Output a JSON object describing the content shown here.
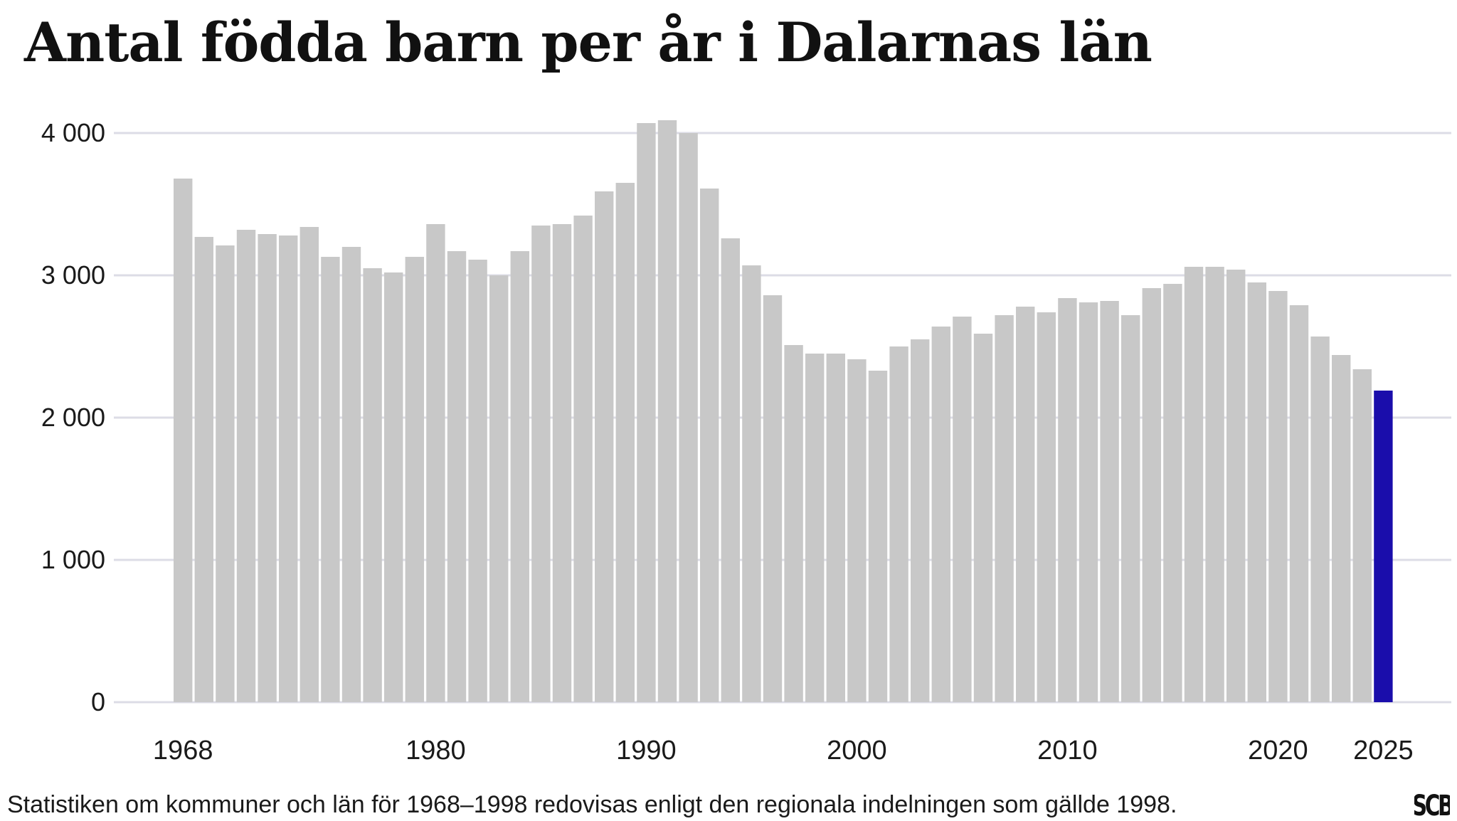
{
  "title": "Antal födda barn per år i Dalarnas län",
  "footnote": "Statistiken om kommuner och län för 1968–1998 redovisas enligt den regionala indelningen som gällde 1998.",
  "logo_text": "SCB",
  "colors": {
    "bar": "#c8c8c8",
    "highlight": "#1a0dab",
    "grid": "#dcdce6",
    "text": "#1a1a1a"
  },
  "chart_data": {
    "type": "bar",
    "title": "Antal födda barn per år i Dalarnas län",
    "xlabel": "",
    "ylabel": "",
    "ylim": [
      0,
      4000
    ],
    "y_ticks": [
      {
        "value": 0,
        "label": "0"
      },
      {
        "value": 1000,
        "label": "1 000"
      },
      {
        "value": 2000,
        "label": "2 000"
      },
      {
        "value": 3000,
        "label": "3 000"
      },
      {
        "value": 4000,
        "label": "4 000"
      }
    ],
    "x_ticks": [
      {
        "value": 1968,
        "label": "1968"
      },
      {
        "value": 1980,
        "label": "1980"
      },
      {
        "value": 1990,
        "label": "1990"
      },
      {
        "value": 2000,
        "label": "2000"
      },
      {
        "value": 2010,
        "label": "2010"
      },
      {
        "value": 2020,
        "label": "2020"
      },
      {
        "value": 2025,
        "label": "2025"
      }
    ],
    "grid": true,
    "highlight_year": 2025,
    "x": [
      1968,
      1969,
      1970,
      1971,
      1972,
      1973,
      1974,
      1975,
      1976,
      1977,
      1978,
      1979,
      1980,
      1981,
      1982,
      1983,
      1984,
      1985,
      1986,
      1987,
      1988,
      1989,
      1990,
      1991,
      1992,
      1993,
      1994,
      1995,
      1996,
      1997,
      1998,
      1999,
      2000,
      2001,
      2002,
      2003,
      2004,
      2005,
      2006,
      2007,
      2008,
      2009,
      2010,
      2011,
      2012,
      2013,
      2014,
      2015,
      2016,
      2017,
      2018,
      2019,
      2020,
      2021,
      2022,
      2023,
      2024,
      2025
    ],
    "values": [
      3680,
      3270,
      3210,
      3320,
      3290,
      3280,
      3340,
      3130,
      3200,
      3050,
      3020,
      3130,
      3360,
      3170,
      3110,
      3000,
      3170,
      3350,
      3360,
      3420,
      3590,
      3650,
      4070,
      4090,
      4000,
      3610,
      3260,
      3070,
      2860,
      2510,
      2450,
      2450,
      2410,
      2330,
      2500,
      2550,
      2640,
      2710,
      2590,
      2720,
      2780,
      2740,
      2840,
      2810,
      2820,
      2720,
      2910,
      2940,
      3060,
      3060,
      3040,
      2950,
      2890,
      2790,
      2570,
      2440,
      2340,
      2190
    ]
  }
}
